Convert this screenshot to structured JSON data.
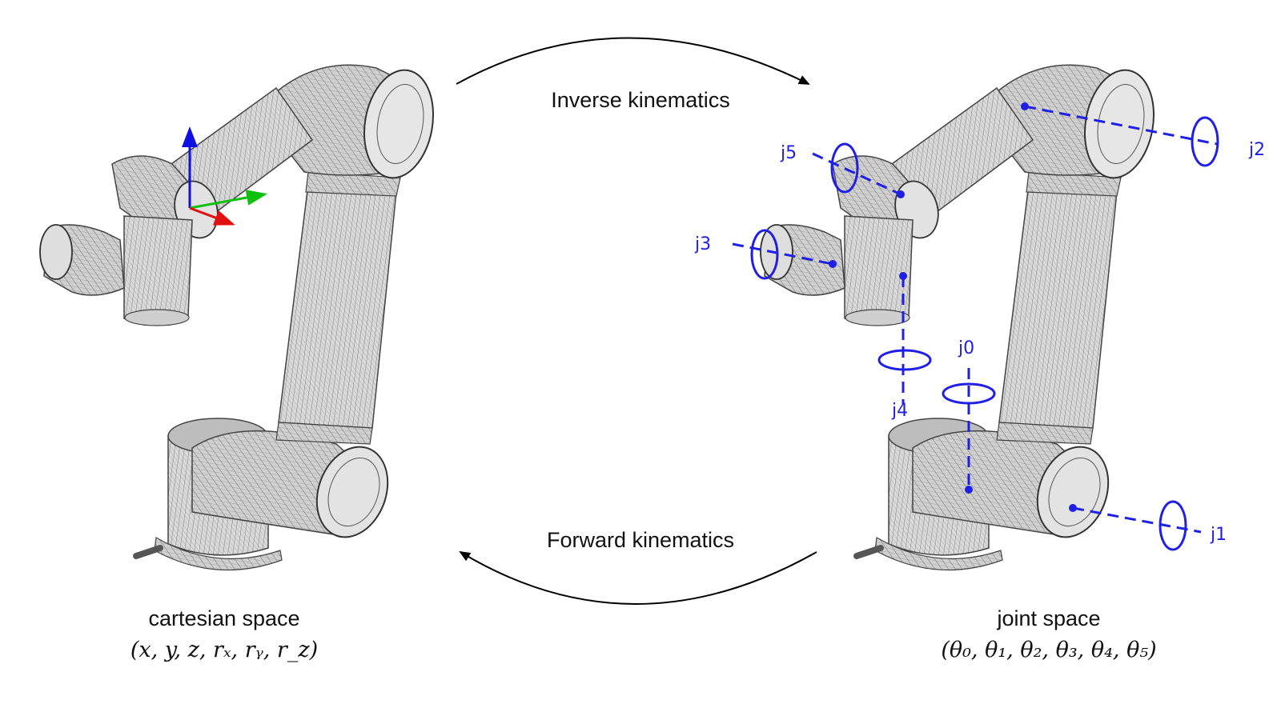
{
  "arrows": {
    "top_label": "Inverse kinematics",
    "bottom_label": "Forward kinematics"
  },
  "left": {
    "label": "cartesian space",
    "math": "(x, y, z, rₓ, rᵧ, r_z)"
  },
  "right": {
    "label": "joint space",
    "math": "(θ₀, θ₁, θ₂, θ₃, θ₄, θ₅)"
  },
  "joints": [
    "j0",
    "j1",
    "j2",
    "j3",
    "j4",
    "j5"
  ],
  "colors": {
    "joint_axis": "#1f1fe6",
    "frame_x": "#e01010",
    "frame_y": "#10c010",
    "frame_z": "#1010e0",
    "robot_fill": "#d9d9d9",
    "robot_stroke": "#555555"
  }
}
